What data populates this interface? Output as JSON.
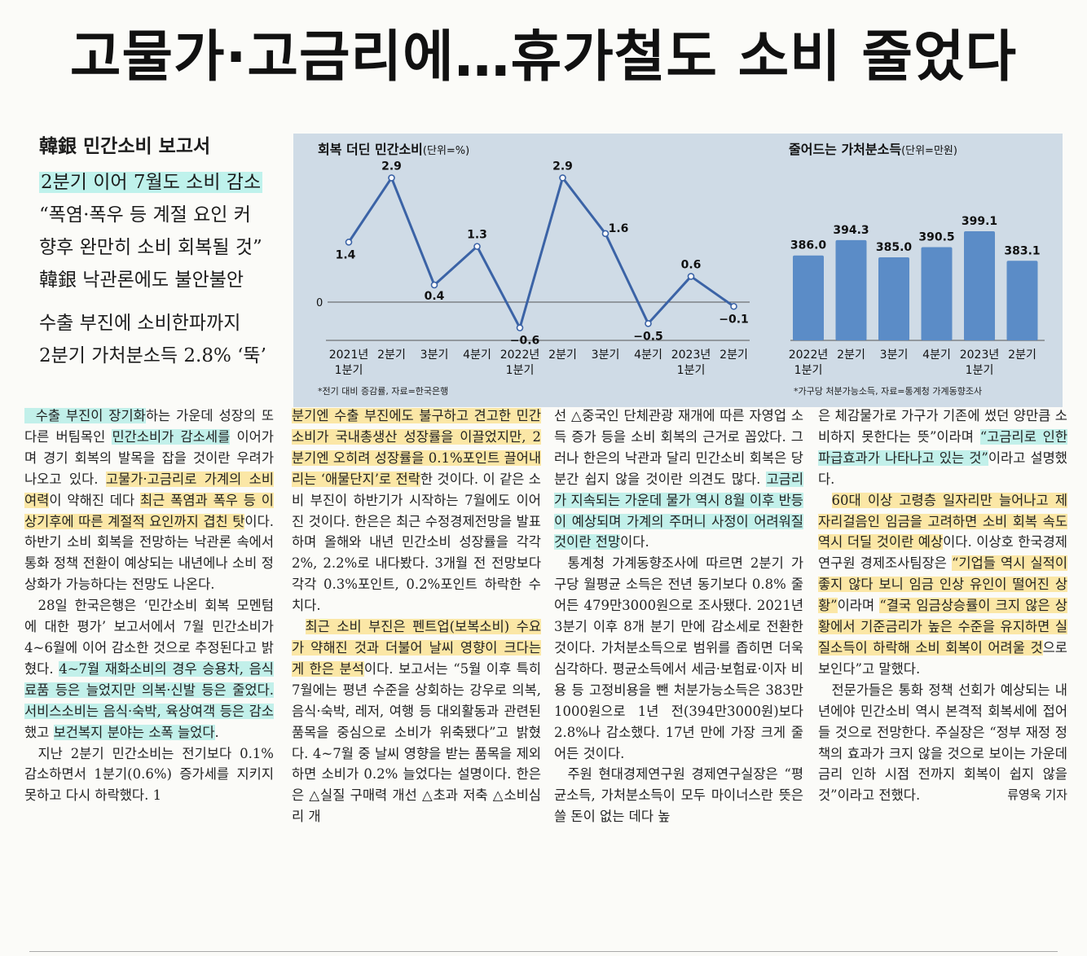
{
  "headline": "고물가·고금리에…휴가철도 소비 줄었다",
  "subheads": {
    "kicker": "韓銀 민간소비 보고서",
    "line1": "2분기 이어 7월도 소비 감소",
    "line2": "“폭염·폭우 등 계절 요인 커",
    "line3": "향후 완만히 소비 회복될 것”",
    "line4": "韓銀 낙관론에도 불안불안",
    "line5": "수출 부진에 소비한파까지",
    "line6": "2분기 가처분소득 2.8% ‘뚝’"
  },
  "line_chart": {
    "title": "회복 더딘 민간소비",
    "unit": "(단위=%)",
    "zero_label": "0",
    "footnote": "*전기 대비 증감률, 자료=한국은행"
  },
  "bar_chart": {
    "title": "줄어드는 가처분소득",
    "unit": "(단위=만원)",
    "footnote": "*가구당 처분가능소득, 자료=통계청 가계동향조사"
  },
  "chart_data": [
    {
      "type": "line",
      "title": "회복 더딘 민간소비",
      "unit": "%",
      "categories": [
        "2021년 1분기",
        "2분기",
        "3분기",
        "4분기",
        "2022년 1분기",
        "2분기",
        "3분기",
        "4분기",
        "2023년 1분기",
        "2분기"
      ],
      "values": [
        1.4,
        2.9,
        0.4,
        1.3,
        -0.6,
        2.9,
        1.6,
        -0.5,
        0.6,
        -0.1
      ],
      "value_labels": [
        "1.4",
        "2.9",
        "0.4",
        "1.3",
        "−0.6",
        "2.9",
        "1.6",
        "−0.5",
        "0.6",
        "−0.1"
      ],
      "tick_labels": [
        [
          "2021년",
          "1분기"
        ],
        [
          "2분기"
        ],
        [
          "3분기"
        ],
        [
          "4분기"
        ],
        [
          "2022년",
          "1분기"
        ],
        [
          "2분기"
        ],
        [
          "3분기"
        ],
        [
          "4분기"
        ],
        [
          "2023년",
          "1분기"
        ],
        [
          "2분기"
        ]
      ],
      "ylim": [
        -1,
        3.5
      ],
      "color": "#3b63a6"
    },
    {
      "type": "bar",
      "title": "줄어드는 가처분소득",
      "unit": "만원",
      "categories": [
        "2022년 1분기",
        "2분기",
        "3분기",
        "4분기",
        "2023년 1분기",
        "2분기"
      ],
      "values": [
        386.0,
        394.3,
        385.0,
        390.5,
        399.1,
        383.1
      ],
      "value_labels": [
        "386.0",
        "394.3",
        "385.0",
        "390.5",
        "399.1",
        "383.1"
      ],
      "tick_labels": [
        [
          "2022년",
          "1분기"
        ],
        [
          "2분기"
        ],
        [
          "3분기"
        ],
        [
          "4분기"
        ],
        [
          "2023년",
          "1분기"
        ],
        [
          "2분기"
        ]
      ],
      "color": "#5b8cc7"
    }
  ],
  "article": {
    "byline": "류영욱 기자"
  }
}
